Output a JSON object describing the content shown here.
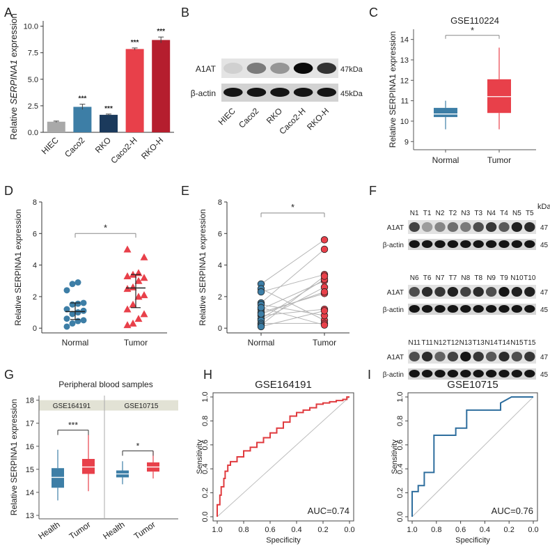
{
  "panel_letters": [
    "A",
    "B",
    "C",
    "D",
    "E",
    "F",
    "G",
    "H",
    "I"
  ],
  "colors": {
    "gray": "#a9a9a9",
    "blue": "#3d7ea6",
    "navy": "#1b3a5c",
    "red": "#e8404a",
    "darkred": "#b51e2e",
    "tumor": "#e8404a",
    "normal": "#3d7ea6",
    "roc_red": "#e03a3e",
    "roc_blue": "#2e6e9e"
  },
  "blots": {
    "B": {
      "rows": [
        "A1AT",
        "β-actin"
      ],
      "sizes": [
        "47kDa",
        "45kDa"
      ],
      "lanes": [
        "HIEC",
        "Caco2",
        "RKO",
        "Caco2-H",
        "RKO-H"
      ],
      "a1at_intensity": [
        0.12,
        0.5,
        0.38,
        1.0,
        0.82
      ]
    },
    "F": {
      "kda_label": "kDa",
      "groups": [
        {
          "lanes": [
            "N1",
            "T1",
            "N2",
            "T2",
            "N3",
            "T3",
            "N4",
            "T4",
            "N5",
            "T5"
          ],
          "a1at_intensity": [
            0.75,
            0.35,
            0.45,
            0.55,
            0.5,
            0.7,
            0.8,
            0.65,
            0.9,
            0.85
          ]
        },
        {
          "lanes": [
            "N6",
            "T6",
            "N7",
            "T7",
            "N8",
            "T8",
            "N9",
            "T9",
            "N10",
            "T10"
          ],
          "a1at_intensity": [
            0.7,
            0.85,
            0.8,
            0.9,
            0.75,
            0.85,
            0.7,
            0.95,
            0.9,
            0.9
          ]
        },
        {
          "lanes": [
            "N11",
            "T11",
            "N12",
            "T12",
            "N13",
            "T13",
            "N14",
            "T14",
            "N15",
            "T15"
          ],
          "a1at_intensity": [
            0.7,
            0.85,
            0.6,
            0.75,
            0.95,
            0.8,
            0.65,
            0.85,
            0.7,
            0.8
          ]
        }
      ],
      "rows": [
        "A1AT",
        "β-actin"
      ],
      "sizes": [
        "47",
        "45"
      ]
    }
  },
  "chart_data": [
    {
      "panel": "A",
      "type": "bar",
      "title": "",
      "ylabel_prefix": "Relative ",
      "ylabel_gene": "SERPINA1",
      "ylabel_suffix": " expression",
      "categories": [
        "HIEC",
        "Caco2",
        "RKO",
        "Caco2-H",
        "RKO-H"
      ],
      "values": [
        1.0,
        2.4,
        1.65,
        7.85,
        8.7
      ],
      "errors": [
        0.06,
        0.25,
        0.07,
        0.1,
        0.28
      ],
      "significance": [
        "",
        "***",
        "***",
        "***",
        "***"
      ],
      "yticks": [
        "0.0",
        "2.5",
        "5.0",
        "7.5",
        "10.0"
      ],
      "ylim": [
        0,
        10.5
      ]
    },
    {
      "panel": "C",
      "type": "box",
      "title": "GSE110224",
      "ylabel": "Relative SERPINA1 expression",
      "categories": [
        "Normal",
        "Tumor"
      ],
      "boxes": [
        {
          "min": 9.6,
          "q1": 10.2,
          "median": 10.35,
          "q3": 10.65,
          "max": 11.0
        },
        {
          "min": 9.6,
          "q1": 10.4,
          "median": 11.2,
          "q3": 12.05,
          "max": 13.6
        }
      ],
      "significance": "*",
      "yticks": [
        "9",
        "10",
        "11",
        "12",
        "13",
        "14"
      ],
      "ylim": [
        8.6,
        14.5
      ]
    },
    {
      "panel": "D",
      "type": "scatter",
      "title": "",
      "ylabel": "Relative SERPINA1 expression",
      "categories": [
        "Normal",
        "Tumor"
      ],
      "normal_values": [
        0.1,
        0.3,
        0.45,
        0.5,
        0.6,
        0.9,
        1.0,
        1.1,
        1.2,
        1.5,
        1.55,
        1.6,
        2.4,
        2.8,
        2.9
      ],
      "tumor_values": [
        0.2,
        0.3,
        0.6,
        0.9,
        1.2,
        1.5,
        2.0,
        2.1,
        2.5,
        2.6,
        3.0,
        3.2,
        3.3,
        3.4,
        3.5,
        4.5,
        5.0
      ],
      "normal_summary": {
        "median": 1.05,
        "q1": 0.55,
        "q3": 1.6
      },
      "tumor_summary": {
        "median": 2.55,
        "q1": 1.3,
        "q3": 3.4
      },
      "significance": "*",
      "yticks": [
        "0",
        "2",
        "4",
        "6",
        "8"
      ],
      "ylim": [
        -0.3,
        8
      ]
    },
    {
      "panel": "E",
      "type": "paired",
      "title": "",
      "ylabel": "Relative SERPINA1 expression",
      "categories": [
        "Normal",
        "Tumor"
      ],
      "pairs": [
        [
          2.8,
          5.6
        ],
        [
          2.5,
          0.5
        ],
        [
          2.3,
          3.4
        ],
        [
          1.6,
          5.0
        ],
        [
          1.5,
          0.8
        ],
        [
          1.2,
          3.0
        ],
        [
          1.0,
          2.2
        ],
        [
          0.8,
          1.2
        ],
        [
          0.6,
          3.1
        ],
        [
          0.5,
          2.6
        ],
        [
          0.3,
          0.3
        ],
        [
          0.2,
          3.3
        ],
        [
          0.1,
          1.1
        ],
        [
          1.3,
          0.2
        ],
        [
          0.9,
          2.3
        ]
      ],
      "significance": "*",
      "yticks": [
        "0",
        "2",
        "4",
        "6",
        "8"
      ],
      "ylim": [
        -0.3,
        8
      ]
    },
    {
      "panel": "G",
      "type": "box",
      "title": "Peripheral blood samples",
      "ylabel": "Relative SERPINA1 expression",
      "facets": [
        "GSE164191",
        "GSE10715"
      ],
      "categories": [
        "Health",
        "Tumor",
        "Health",
        "Tumor"
      ],
      "boxes": [
        {
          "min": 13.65,
          "q1": 14.2,
          "median": 14.65,
          "q3": 15.05,
          "max": 15.85
        },
        {
          "min": 14.05,
          "q1": 14.8,
          "median": 15.1,
          "q3": 15.45,
          "max": 16.5
        },
        {
          "min": 14.35,
          "q1": 14.65,
          "median": 14.8,
          "q3": 14.95,
          "max": 15.35
        },
        {
          "min": 14.6,
          "q1": 14.9,
          "median": 15.1,
          "q3": 15.3,
          "max": 15.8
        }
      ],
      "significance": [
        "***",
        "*"
      ],
      "yticks": [
        "13",
        "14",
        "15",
        "16",
        "17",
        "18"
      ],
      "ylim": [
        12.85,
        18.2
      ]
    },
    {
      "panel": "H",
      "type": "line",
      "title": "GSE164191",
      "xlabel": "Specificity",
      "ylabel": "Sensitivity",
      "xticks": [
        "1.0",
        "0.8",
        "0.6",
        "0.4",
        "0.2",
        "0.0"
      ],
      "yticks": [
        "0.0",
        "0.2",
        "0.4",
        "0.6",
        "0.8",
        "1.0"
      ],
      "annotation": "AUC=0.74",
      "spec": [
        1.0,
        1.0,
        0.98,
        0.98,
        0.97,
        0.97,
        0.95,
        0.95,
        0.94,
        0.94,
        0.92,
        0.92,
        0.9,
        0.9,
        0.85,
        0.85,
        0.8,
        0.8,
        0.75,
        0.75,
        0.7,
        0.7,
        0.65,
        0.65,
        0.6,
        0.6,
        0.55,
        0.55,
        0.5,
        0.5,
        0.45,
        0.45,
        0.4,
        0.4,
        0.35,
        0.35,
        0.3,
        0.3,
        0.25,
        0.25,
        0.2,
        0.2,
        0.15,
        0.15,
        0.1,
        0.1,
        0.05,
        0.05,
        0.02,
        0.02,
        0.0
      ],
      "sens": [
        0.0,
        0.1,
        0.1,
        0.18,
        0.18,
        0.25,
        0.25,
        0.32,
        0.32,
        0.38,
        0.38,
        0.43,
        0.43,
        0.46,
        0.46,
        0.5,
        0.5,
        0.55,
        0.55,
        0.58,
        0.58,
        0.62,
        0.62,
        0.66,
        0.66,
        0.7,
        0.7,
        0.74,
        0.74,
        0.79,
        0.79,
        0.84,
        0.84,
        0.87,
        0.87,
        0.89,
        0.89,
        0.91,
        0.91,
        0.94,
        0.94,
        0.95,
        0.95,
        0.96,
        0.96,
        0.97,
        0.97,
        0.98,
        0.98,
        1.0,
        1.0
      ]
    },
    {
      "panel": "I",
      "type": "line",
      "title": "GSE10715",
      "xlabel": "Specificity",
      "ylabel": "Sensitivity",
      "xticks": [
        "1.0",
        "0.8",
        "0.6",
        "0.4",
        "0.2",
        "0.0"
      ],
      "yticks": [
        "0.0",
        "0.2",
        "0.4",
        "0.6",
        "0.8",
        "1.0"
      ],
      "annotation": "AUC=0.76",
      "spec": [
        1.0,
        1.0,
        0.95,
        0.95,
        0.9,
        0.9,
        0.82,
        0.82,
        0.64,
        0.64,
        0.55,
        0.55,
        0.27,
        0.27,
        0.18,
        0.0
      ],
      "sens": [
        0.0,
        0.21,
        0.21,
        0.26,
        0.26,
        0.37,
        0.37,
        0.68,
        0.68,
        0.74,
        0.74,
        0.89,
        0.89,
        0.95,
        1.0,
        1.0
      ]
    }
  ]
}
